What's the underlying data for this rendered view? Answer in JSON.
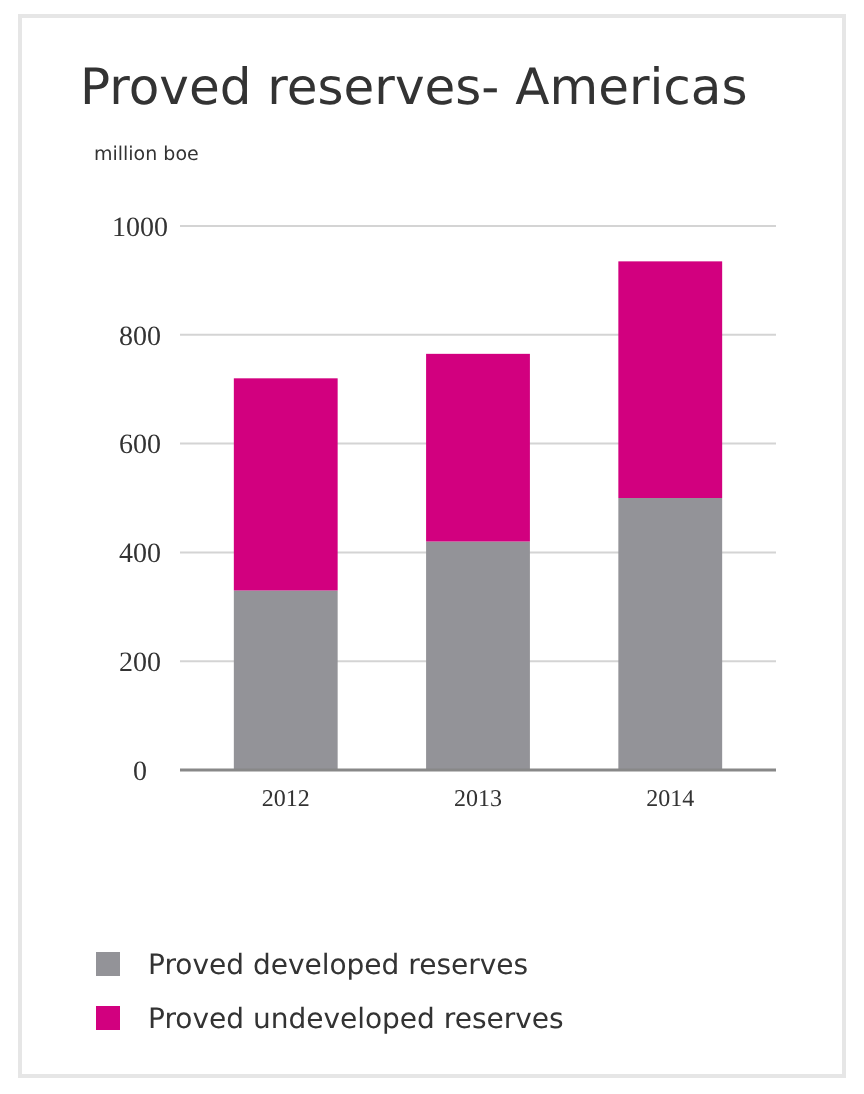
{
  "chart_data": {
    "type": "bar",
    "title": "Proved reserves- Americas",
    "ylabel": "million boe",
    "categories": [
      "2012",
      "2013",
      "2014"
    ],
    "stacked": true,
    "series": [
      {
        "name": "Proved developed reserves",
        "color": "#939398",
        "values": [
          330,
          420,
          500
        ]
      },
      {
        "name": "Proved undeveloped reserves",
        "color": "#d2007f",
        "values": [
          390,
          345,
          435
        ]
      }
    ],
    "ylim": [
      0,
      1000
    ],
    "yticks": [
      0,
      200,
      400,
      600,
      800,
      1000
    ],
    "grid": "y",
    "legend": "bottom"
  }
}
